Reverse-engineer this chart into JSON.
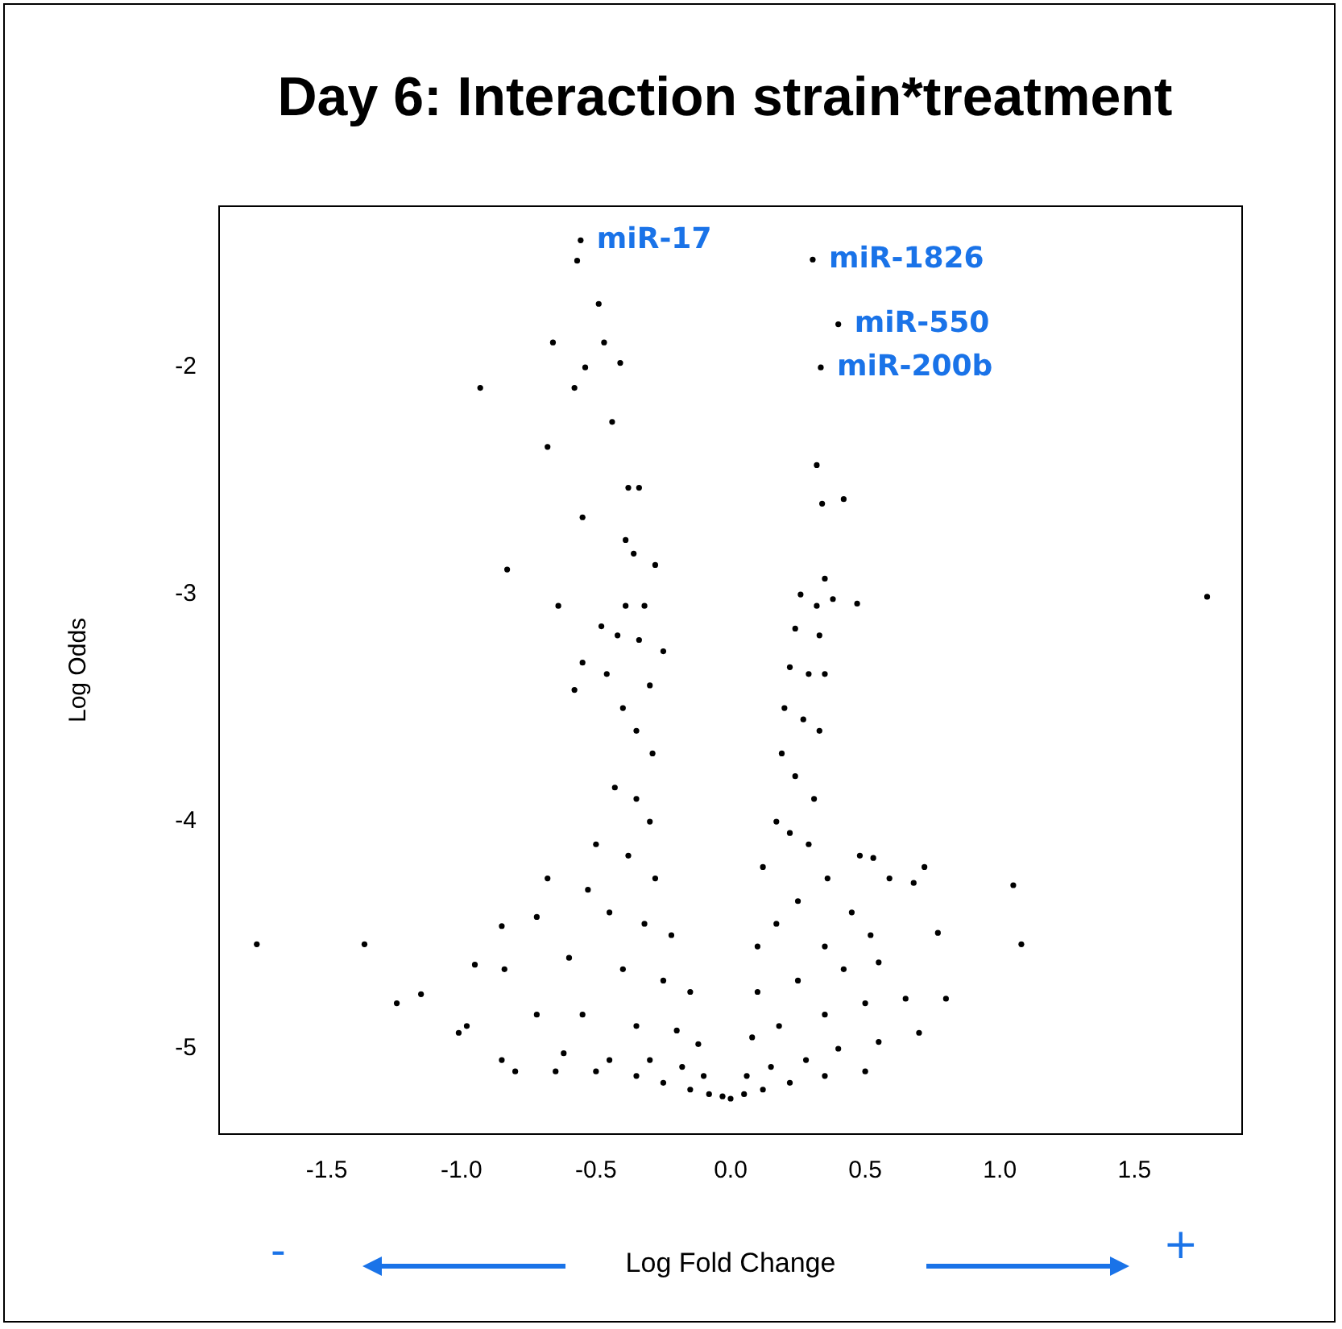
{
  "chart_data": {
    "type": "scatter",
    "title": "Day 6: Interaction strain*treatment",
    "xlabel": "Log Fold Change",
    "ylabel": "Log Odds",
    "xlim": [
      -1.9,
      1.9
    ],
    "ylim": [
      -5.376,
      -1.29
    ],
    "xticks": [
      -1.5,
      {
        "value": -1,
        "label": "-1.0"
      },
      -0.5,
      {
        "value": 0,
        "label": "0.0"
      },
      0.5,
      {
        "value": 1,
        "label": "1.0"
      },
      1.5
    ],
    "yticks": [
      -2,
      -3,
      -4,
      -5
    ],
    "grid": false,
    "legend": false,
    "marker": "circle",
    "series": [
      {
        "color": "#000000",
        "x": [
          -0.557,
          -0.57,
          -0.49,
          -0.66,
          -0.47,
          -0.41,
          -0.54,
          -0.58,
          -0.93,
          -0.44,
          -0.68,
          -0.38,
          -0.34,
          -0.55,
          -0.39,
          -0.36,
          -0.83,
          -0.28,
          -0.64,
          -0.39,
          -0.32,
          -0.48,
          -0.42,
          -0.34,
          -0.25,
          -0.55,
          -0.46,
          -0.58,
          -0.3,
          -0.4,
          -0.35,
          -0.29,
          -0.43,
          -0.35,
          -0.3,
          -0.5,
          -0.38,
          -0.28,
          -0.68,
          -0.53,
          -0.72,
          -0.85,
          -0.45,
          -0.32,
          -0.22,
          -1.76,
          -1.36,
          -0.95,
          -0.84,
          -0.6,
          -0.4,
          -0.25,
          -0.15,
          -1.15,
          -1.24,
          -0.98,
          -0.72,
          -0.55,
          -0.35,
          -0.2,
          -0.12,
          -1.01,
          -0.85,
          -0.62,
          -0.45,
          -0.3,
          -0.18,
          -0.1,
          -0.8,
          -0.65,
          -0.5,
          -0.35,
          -0.25,
          -0.15,
          -0.08,
          -0.03,
          0,
          0.305,
          0.4,
          0.335,
          0.32,
          0.42,
          0.34,
          0.35,
          1.77,
          0.26,
          0.32,
          0.47,
          0.38,
          0.24,
          0.33,
          0.22,
          0.29,
          0.35,
          0.2,
          0.27,
          0.33,
          0.19,
          0.24,
          0.31,
          0.17,
          0.22,
          0.29,
          0.48,
          0.53,
          0.36,
          0.59,
          0.68,
          0.72,
          1.05,
          0.12,
          0.25,
          0.45,
          0.17,
          0.77,
          1.08,
          0.52,
          0.35,
          0.1,
          0.55,
          0.42,
          0.25,
          0.1,
          0.8,
          0.65,
          0.5,
          0.35,
          0.18,
          0.08,
          0.7,
          0.55,
          0.4,
          0.28,
          0.15,
          0.06,
          0.5,
          0.35,
          0.22,
          0.12,
          0.05
        ],
        "values": [
          -1.44,
          -1.53,
          -1.72,
          -1.89,
          -1.89,
          -1.98,
          -2.0,
          -2.09,
          -2.09,
          -2.24,
          -2.35,
          -2.53,
          -2.53,
          -2.66,
          -2.76,
          -2.82,
          -2.89,
          -2.87,
          -3.05,
          -3.05,
          -3.05,
          -3.14,
          -3.18,
          -3.2,
          -3.25,
          -3.3,
          -3.35,
          -3.42,
          -3.4,
          -3.5,
          -3.6,
          -3.7,
          -3.85,
          -3.9,
          -4.0,
          -4.1,
          -4.15,
          -4.25,
          -4.25,
          -4.3,
          -4.42,
          -4.46,
          -4.4,
          -4.45,
          -4.5,
          -4.54,
          -4.54,
          -4.63,
          -4.65,
          -4.6,
          -4.65,
          -4.7,
          -4.75,
          -4.76,
          -4.8,
          -4.9,
          -4.85,
          -4.85,
          -4.9,
          -4.92,
          -4.98,
          -4.93,
          -5.05,
          -5.02,
          -5.05,
          -5.05,
          -5.08,
          -5.12,
          -5.1,
          -5.1,
          -5.1,
          -5.12,
          -5.15,
          -5.18,
          -5.2,
          -5.21,
          -5.22,
          -1.525,
          -1.81,
          -2.0,
          -2.43,
          -2.58,
          -2.6,
          -2.93,
          -3.01,
          -3.0,
          -3.05,
          -3.04,
          -3.02,
          -3.15,
          -3.18,
          -3.32,
          -3.35,
          -3.35,
          -3.5,
          -3.55,
          -3.6,
          -3.7,
          -3.8,
          -3.9,
          -4.0,
          -4.05,
          -4.1,
          -4.15,
          -4.16,
          -4.25,
          -4.25,
          -4.27,
          -4.2,
          -4.28,
          -4.2,
          -4.35,
          -4.4,
          -4.45,
          -4.49,
          -4.54,
          -4.5,
          -4.55,
          -4.55,
          -4.62,
          -4.65,
          -4.7,
          -4.75,
          -4.78,
          -4.78,
          -4.8,
          -4.85,
          -4.9,
          -4.95,
          -4.93,
          -4.97,
          -5.0,
          -5.05,
          -5.08,
          -5.12,
          -5.1,
          -5.12,
          -5.15,
          -5.18,
          -5.2
        ]
      }
    ],
    "annotations": [
      {
        "text": "miR-17",
        "x": -0.557,
        "y": -1.44
      },
      {
        "text": "miR-1826",
        "x": 0.305,
        "y": -1.525
      },
      {
        "text": "miR-550",
        "x": 0.4,
        "y": -1.81
      },
      {
        "text": "miR-200b",
        "x": 0.335,
        "y": -2.0
      },
      "-",
      "+"
    ]
  }
}
